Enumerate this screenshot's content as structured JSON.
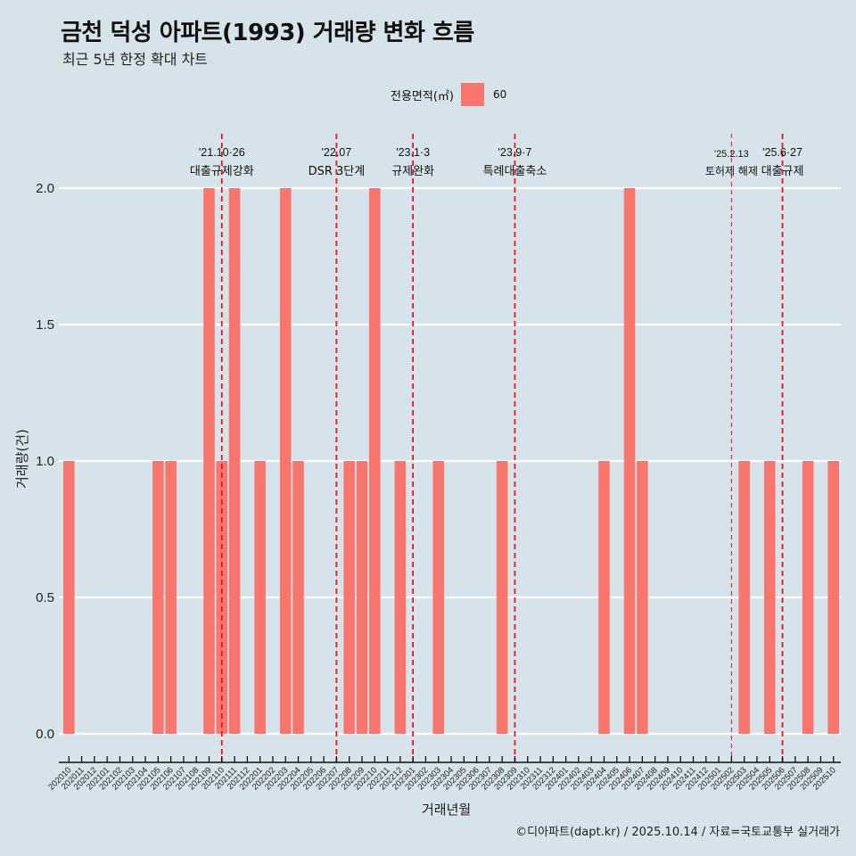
{
  "header": {
    "title": "금천 덕성 아파트(1993) 거래량 변화 흐름",
    "subtitle": "최근 5년 한정 확대 차트"
  },
  "legend": {
    "title": "전용면적(㎡)",
    "entries": [
      {
        "label": "60",
        "color": "#F8766D"
      }
    ]
  },
  "footer": {
    "caption": "©디아파트(dapt.kr) / 2025.10.14 / 자료=국토교통부 실거래가"
  },
  "colors": {
    "background": "#D6E3EA",
    "bar": "#F8766D",
    "event_line": "#E8151B",
    "grid": "#FFFFFF"
  },
  "chart_data": {
    "type": "bar",
    "title": "금천 덕성 아파트(1993) 거래량 변화 흐름",
    "subtitle": "최근 5년 한정 확대 차트",
    "xlabel": "거래년월",
    "ylabel": "거래량(건)",
    "ylim": [
      0,
      2
    ],
    "yticks": [
      "0.0",
      "0.5",
      "1.0",
      "1.5",
      "2.0"
    ],
    "ytick_values": [
      0,
      0.5,
      1.0,
      1.5,
      2.0
    ],
    "grid": true,
    "legend_position": "top",
    "categories": [
      "202010",
      "202011",
      "202012",
      "202101",
      "202102",
      "202103",
      "202104",
      "202105",
      "202106",
      "202107",
      "202108",
      "202109",
      "202110",
      "202111",
      "202112",
      "202201",
      "202202",
      "202203",
      "202204",
      "202205",
      "202206",
      "202207",
      "202208",
      "202209",
      "202210",
      "202211",
      "202212",
      "202301",
      "202302",
      "202303",
      "202304",
      "202305",
      "202306",
      "202307",
      "202308",
      "202309",
      "202310",
      "202311",
      "202312",
      "202401",
      "202402",
      "202403",
      "202404",
      "202405",
      "202406",
      "202407",
      "202408",
      "202409",
      "202410",
      "202411",
      "202412",
      "202501",
      "202502",
      "202503",
      "202504",
      "202505",
      "202506",
      "202507",
      "202508",
      "202509",
      "202510"
    ],
    "series": [
      {
        "name": "60",
        "values": [
          1,
          0,
          0,
          0,
          0,
          0,
          0,
          1,
          1,
          0,
          0,
          2,
          1,
          2,
          0,
          1,
          0,
          2,
          1,
          0,
          0,
          0,
          1,
          1,
          2,
          0,
          1,
          0,
          0,
          1,
          0,
          0,
          0,
          0,
          1,
          0,
          0,
          0,
          0,
          0,
          0,
          0,
          1,
          0,
          2,
          1,
          0,
          0,
          0,
          0,
          0,
          0,
          0,
          1,
          0,
          1,
          0,
          0,
          1,
          0,
          1
        ]
      }
    ],
    "annotations": [
      {
        "category": "202110",
        "date": "'21.10·26",
        "label": "대출규제강화",
        "style": "dashed"
      },
      {
        "category": "202207",
        "date": "'22.07",
        "label": "DSR 3단계",
        "style": "dashed"
      },
      {
        "category": "202301",
        "date": "'23.1·3",
        "label": "규제완화",
        "style": "dashed"
      },
      {
        "category": "202309",
        "date": "'23.9·7",
        "label": "특례대출축소",
        "style": "dashed"
      },
      {
        "category": "202502",
        "date": "'25.2.13",
        "label": "토허제 해제",
        "style": "thin-dashed"
      },
      {
        "category": "202506",
        "date": "'25.6·27",
        "label": "대출규제",
        "style": "dashed"
      }
    ]
  }
}
